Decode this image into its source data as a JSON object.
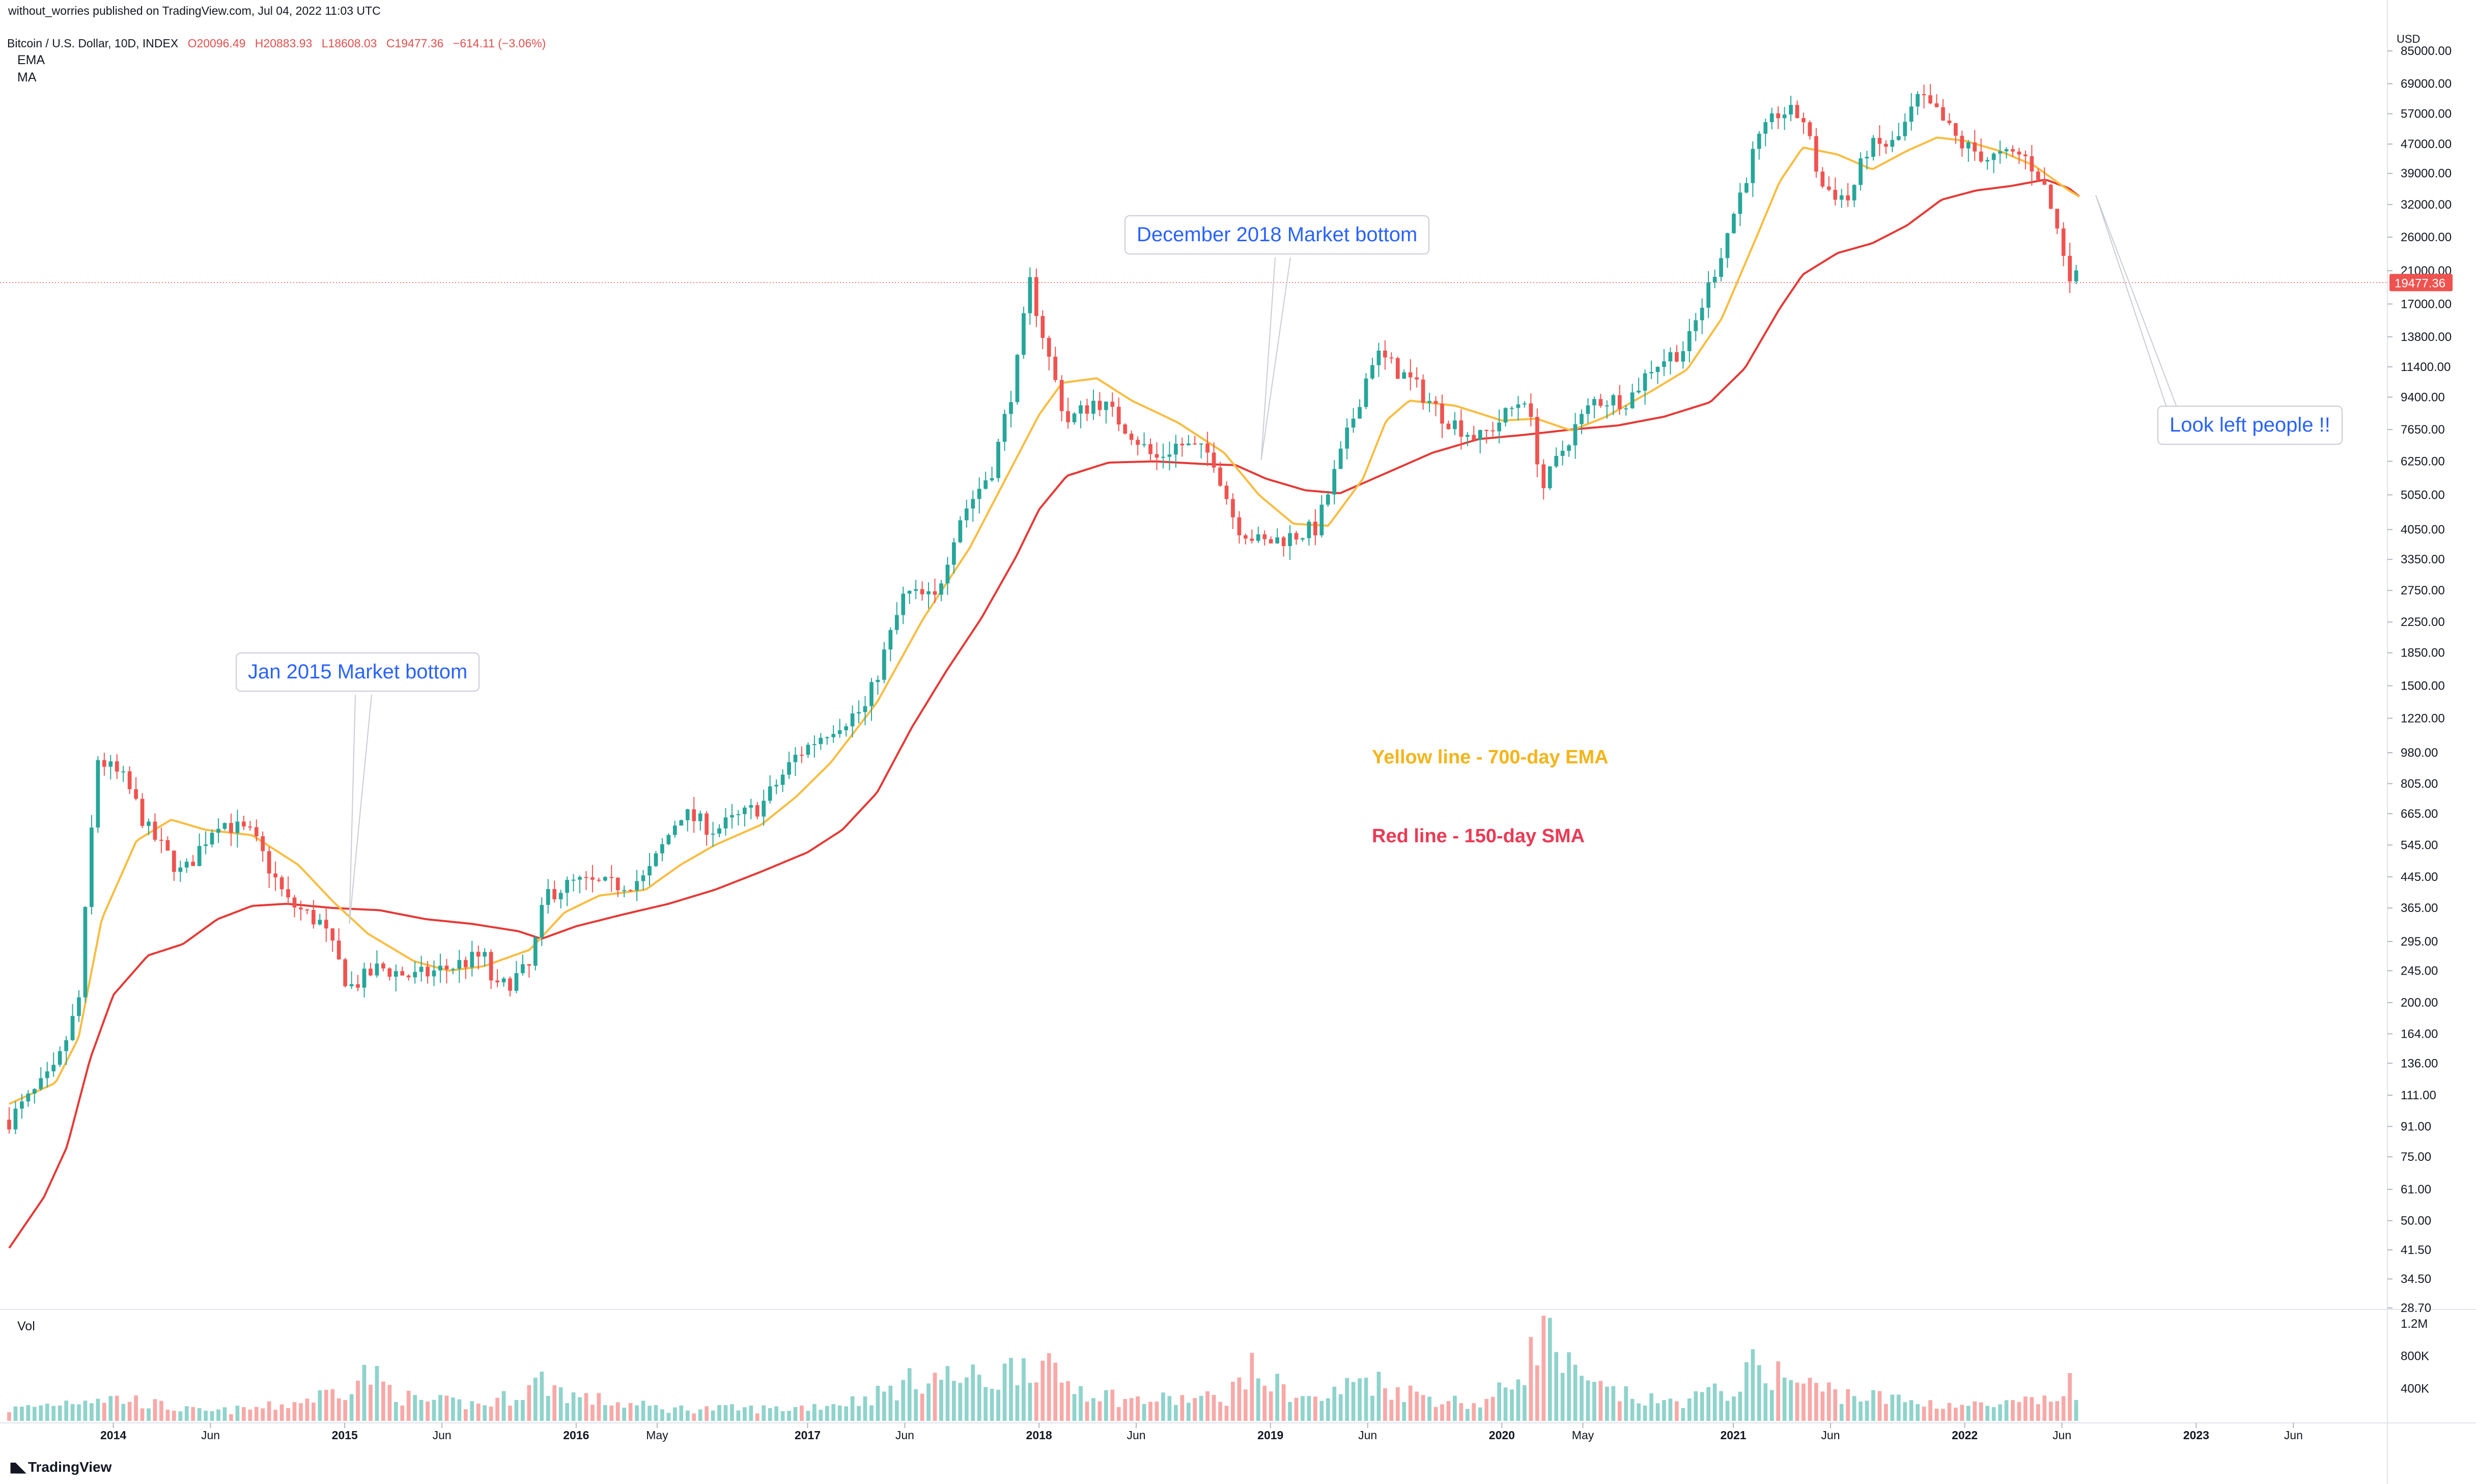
{
  "header": {
    "credit": "without_worries published on TradingView.com, Jul 04, 2022 11:03 UTC",
    "symbol": "Bitcoin / U.S. Dollar, 10D, INDEX",
    "open": "O20096.49",
    "high": "H20883.93",
    "low": "L18608.03",
    "close": "C19477.36",
    "change": "−614.11 (−3.06%)",
    "ema_label": "EMA",
    "ma_label": "MA",
    "vol_label": "Vol",
    "footer_brand": "TradingView"
  },
  "annotations": {
    "jan2015": "Jan 2015 Market bottom",
    "dec2018": "December 2018 Market bottom",
    "look_left": "Look left people !!",
    "yellow_note": "Yellow line - 700-day EMA",
    "red_note": "Red line - 150-day SMA"
  },
  "colors": {
    "up": "#26a69a",
    "down": "#ef5350",
    "vol_up": "#8fd3cc",
    "vol_down": "#f7a9a7",
    "ema": "#f9bc3f",
    "sma": "#e53935",
    "callout_text": "#2962ff",
    "yellow_note": "#f4b41a",
    "red_note": "#ea3a55"
  },
  "chart_data": {
    "type": "candlestick",
    "title": "Bitcoin / U.S. Dollar, 10D, INDEX",
    "yscale": "log",
    "ylabel": "USD",
    "ylim": [
      28.7,
      85000
    ],
    "price_ticks": [
      "85000.00",
      "69000.00",
      "57000.00",
      "47000.00",
      "39000.00",
      "32000.00",
      "26000.00",
      "21000.00",
      "17000.00",
      "13800.00",
      "11400.00",
      "9400.00",
      "7650.00",
      "6250.00",
      "5050.00",
      "4050.00",
      "3350.00",
      "2750.00",
      "2250.00",
      "1850.00",
      "1500.00",
      "1220.00",
      "980.00",
      "805.00",
      "665.00",
      "545.00",
      "445.00",
      "365.00",
      "295.00",
      "245.00",
      "200.00",
      "164.00",
      "136.00",
      "111.00",
      "91.00",
      "75.00",
      "61.00",
      "50.00",
      "41.50",
      "34.50",
      "28.70"
    ],
    "last_price_label": "19477.36",
    "last_price": 19477.36,
    "volume_ticks": [
      "1.2M",
      "800K",
      "400K"
    ],
    "time_ticks": [
      "2014",
      "Jun",
      "2015",
      "Jun",
      "2016",
      "May",
      "2017",
      "Jun",
      "2018",
      "Jun",
      "2019",
      "Jun",
      "2020",
      "May",
      "2021",
      "Jun",
      "2022",
      "Jun",
      "2023",
      "Jun"
    ],
    "time_tick_years": [
      2014.0,
      2014.42,
      2015.0,
      2015.42,
      2016.0,
      2016.35,
      2017.0,
      2017.42,
      2018.0,
      2018.42,
      2019.0,
      2019.42,
      2020.0,
      2020.35,
      2021.0,
      2021.42,
      2022.0,
      2022.42,
      2023.0,
      2023.42
    ],
    "xrange_years": [
      2013.55,
      2023.8
    ],
    "price_anchors": [
      [
        2013.55,
        95
      ],
      [
        2013.75,
        130
      ],
      [
        2013.85,
        200
      ],
      [
        2013.93,
        950
      ],
      [
        2014.05,
        820
      ],
      [
        2014.15,
        600
      ],
      [
        2014.3,
        450
      ],
      [
        2014.45,
        640
      ],
      [
        2014.6,
        580
      ],
      [
        2014.75,
        380
      ],
      [
        2014.9,
        330
      ],
      [
        2015.02,
        220
      ],
      [
        2015.15,
        250
      ],
      [
        2015.3,
        235
      ],
      [
        2015.45,
        250
      ],
      [
        2015.6,
        270
      ],
      [
        2015.65,
        215
      ],
      [
        2015.8,
        250
      ],
      [
        2015.87,
        400
      ],
      [
        2016.0,
        430
      ],
      [
        2016.15,
        420
      ],
      [
        2016.3,
        440
      ],
      [
        2016.45,
        670
      ],
      [
        2016.6,
        600
      ],
      [
        2016.8,
        700
      ],
      [
        2016.95,
        960
      ],
      [
        2017.1,
        1150
      ],
      [
        2017.25,
        1300
      ],
      [
        2017.42,
        2700
      ],
      [
        2017.55,
        2600
      ],
      [
        2017.65,
        4300
      ],
      [
        2017.8,
        6000
      ],
      [
        2017.9,
        11000
      ],
      [
        2017.96,
        19500
      ],
      [
        2018.05,
        11500
      ],
      [
        2018.12,
        8000
      ],
      [
        2018.25,
        9300
      ],
      [
        2018.4,
        7500
      ],
      [
        2018.5,
        6300
      ],
      [
        2018.6,
        7000
      ],
      [
        2018.75,
        6500
      ],
      [
        2018.85,
        4200
      ],
      [
        2018.96,
        3700
      ],
      [
        2019.1,
        3900
      ],
      [
        2019.2,
        4100
      ],
      [
        2019.35,
        8000
      ],
      [
        2019.45,
        12500
      ],
      [
        2019.6,
        10500
      ],
      [
        2019.75,
        8300
      ],
      [
        2019.9,
        7200
      ],
      [
        2020.0,
        8200
      ],
      [
        2020.1,
        9500
      ],
      [
        2020.18,
        5300
      ],
      [
        2020.3,
        7500
      ],
      [
        2020.4,
        9200
      ],
      [
        2020.55,
        9300
      ],
      [
        2020.65,
        11500
      ],
      [
        2020.8,
        13000
      ],
      [
        2020.95,
        24000
      ],
      [
        2021.1,
        47000
      ],
      [
        2021.2,
        58000
      ],
      [
        2021.3,
        56000
      ],
      [
        2021.38,
        36000
      ],
      [
        2021.5,
        33000
      ],
      [
        2021.58,
        46000
      ],
      [
        2021.7,
        47000
      ],
      [
        2021.8,
        63000
      ],
      [
        2021.88,
        57000
      ],
      [
        2021.98,
        47000
      ],
      [
        2022.1,
        43000
      ],
      [
        2022.25,
        44000
      ],
      [
        2022.33,
        38000
      ],
      [
        2022.38,
        30000
      ],
      [
        2022.45,
        21000
      ],
      [
        2022.5,
        19477
      ]
    ],
    "ema_anchors": [
      [
        2013.55,
        105
      ],
      [
        2013.75,
        120
      ],
      [
        2013.85,
        160
      ],
      [
        2013.95,
        340
      ],
      [
        2014.1,
        560
      ],
      [
        2014.25,
        640
      ],
      [
        2014.4,
        600
      ],
      [
        2014.6,
        580
      ],
      [
        2014.8,
        480
      ],
      [
        2014.95,
        380
      ],
      [
        2015.1,
        310
      ],
      [
        2015.3,
        260
      ],
      [
        2015.45,
        245
      ],
      [
        2015.6,
        252
      ],
      [
        2015.8,
        280
      ],
      [
        2015.95,
        355
      ],
      [
        2016.1,
        395
      ],
      [
        2016.3,
        410
      ],
      [
        2016.45,
        480
      ],
      [
        2016.6,
        545
      ],
      [
        2016.8,
        620
      ],
      [
        2016.95,
        740
      ],
      [
        2017.1,
        920
      ],
      [
        2017.3,
        1350
      ],
      [
        2017.5,
        2300
      ],
      [
        2017.7,
        3600
      ],
      [
        2017.85,
        5500
      ],
      [
        2018.0,
        8400
      ],
      [
        2018.1,
        10300
      ],
      [
        2018.25,
        10600
      ],
      [
        2018.4,
        9200
      ],
      [
        2018.6,
        8000
      ],
      [
        2018.8,
        6600
      ],
      [
        2018.95,
        5050
      ],
      [
        2019.1,
        4200
      ],
      [
        2019.25,
        4150
      ],
      [
        2019.4,
        5600
      ],
      [
        2019.5,
        8100
      ],
      [
        2019.6,
        9200
      ],
      [
        2019.8,
        8900
      ],
      [
        2020.0,
        8100
      ],
      [
        2020.15,
        8200
      ],
      [
        2020.3,
        7600
      ],
      [
        2020.45,
        8300
      ],
      [
        2020.65,
        9800
      ],
      [
        2020.8,
        11200
      ],
      [
        2020.95,
        15500
      ],
      [
        2021.1,
        26000
      ],
      [
        2021.2,
        37000
      ],
      [
        2021.3,
        46000
      ],
      [
        2021.45,
        44000
      ],
      [
        2021.6,
        40000
      ],
      [
        2021.75,
        45000
      ],
      [
        2021.88,
        49000
      ],
      [
        2022.0,
        48000
      ],
      [
        2022.15,
        45000
      ],
      [
        2022.3,
        41000
      ],
      [
        2022.45,
        35000
      ],
      [
        2022.5,
        33500
      ]
    ],
    "sma_anchors": [
      [
        2013.55,
        42
      ],
      [
        2013.7,
        58
      ],
      [
        2013.8,
        80
      ],
      [
        2013.9,
        140
      ],
      [
        2014.0,
        210
      ],
      [
        2014.15,
        270
      ],
      [
        2014.3,
        290
      ],
      [
        2014.45,
        340
      ],
      [
        2014.6,
        370
      ],
      [
        2014.75,
        375
      ],
      [
        2014.95,
        365
      ],
      [
        2015.15,
        360
      ],
      [
        2015.35,
        340
      ],
      [
        2015.55,
        330
      ],
      [
        2015.75,
        315
      ],
      [
        2015.85,
        300
      ],
      [
        2016.0,
        325
      ],
      [
        2016.2,
        350
      ],
      [
        2016.4,
        375
      ],
      [
        2016.6,
        410
      ],
      [
        2016.8,
        460
      ],
      [
        2017.0,
        520
      ],
      [
        2017.15,
        600
      ],
      [
        2017.3,
        760
      ],
      [
        2017.45,
        1150
      ],
      [
        2017.6,
        1650
      ],
      [
        2017.75,
        2300
      ],
      [
        2017.9,
        3400
      ],
      [
        2018.0,
        4600
      ],
      [
        2018.12,
        5700
      ],
      [
        2018.3,
        6200
      ],
      [
        2018.5,
        6250
      ],
      [
        2018.7,
        6150
      ],
      [
        2018.85,
        6100
      ],
      [
        2018.98,
        5600
      ],
      [
        2019.15,
        5200
      ],
      [
        2019.3,
        5100
      ],
      [
        2019.5,
        5800
      ],
      [
        2019.7,
        6600
      ],
      [
        2019.9,
        7200
      ],
      [
        2020.1,
        7400
      ],
      [
        2020.3,
        7650
      ],
      [
        2020.5,
        7850
      ],
      [
        2020.7,
        8300
      ],
      [
        2020.9,
        9100
      ],
      [
        2021.05,
        11300
      ],
      [
        2021.2,
        16500
      ],
      [
        2021.3,
        20500
      ],
      [
        2021.45,
        23500
      ],
      [
        2021.6,
        25000
      ],
      [
        2021.75,
        28000
      ],
      [
        2021.9,
        33000
      ],
      [
        2022.05,
        35000
      ],
      [
        2022.2,
        36000
      ],
      [
        2022.35,
        37500
      ],
      [
        2022.45,
        35500
      ],
      [
        2022.5,
        33500
      ]
    ],
    "volume_anchors": [
      [
        2013.55,
        140000
      ],
      [
        2013.9,
        300000
      ],
      [
        2014.1,
        250000
      ],
      [
        2014.4,
        110000
      ],
      [
        2014.7,
        180000
      ],
      [
        2015.0,
        420000
      ],
      [
        2015.1,
        600000
      ],
      [
        2015.3,
        250000
      ],
      [
        2015.6,
        200000
      ],
      [
        2015.85,
        500000
      ],
      [
        2016.0,
        300000
      ],
      [
        2016.4,
        150000
      ],
      [
        2016.9,
        150000
      ],
      [
        2017.2,
        250000
      ],
      [
        2017.5,
        550000
      ],
      [
        2017.8,
        500000
      ],
      [
        2017.95,
        800000
      ],
      [
        2018.1,
        500000
      ],
      [
        2018.4,
        250000
      ],
      [
        2018.8,
        280000
      ],
      [
        2018.9,
        650000
      ],
      [
        2019.2,
        250000
      ],
      [
        2019.4,
        550000
      ],
      [
        2019.6,
        350000
      ],
      [
        2019.9,
        200000
      ],
      [
        2020.18,
        1150000
      ],
      [
        2020.35,
        450000
      ],
      [
        2020.7,
        220000
      ],
      [
        2021.0,
        400000
      ],
      [
        2021.1,
        700000
      ],
      [
        2021.3,
        450000
      ],
      [
        2021.5,
        330000
      ],
      [
        2021.8,
        230000
      ],
      [
        2022.1,
        180000
      ],
      [
        2022.4,
        260000
      ],
      [
        2022.45,
        550000
      ],
      [
        2022.5,
        200000
      ]
    ]
  }
}
